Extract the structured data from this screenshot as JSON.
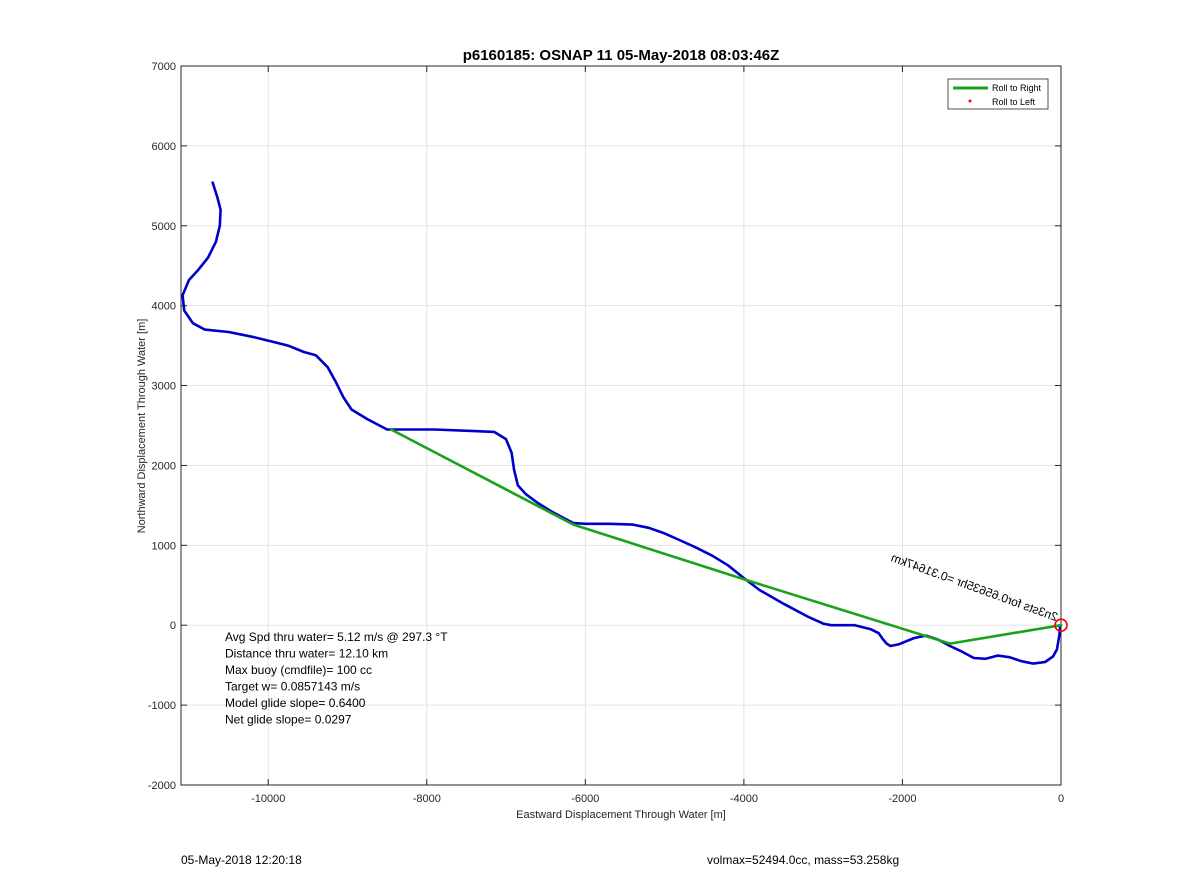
{
  "chart_data": {
    "type": "line",
    "title": "p6160185: OSNAP 11 05-May-2018 08:03:46Z",
    "xlabel": "Eastward Displacement Through Water [m]",
    "ylabel": "Northward Displacement Through Water [m]",
    "xlim": [
      -11100,
      0
    ],
    "ylim": [
      -2000,
      7000
    ],
    "xticks": [
      -10000,
      -8000,
      -6000,
      -4000,
      -2000,
      0
    ],
    "yticks": [
      -2000,
      -1000,
      0,
      1000,
      2000,
      3000,
      4000,
      5000,
      6000,
      7000
    ],
    "grid": true,
    "legend_position": "top-right",
    "legend": [
      {
        "label": "Roll to Right",
        "color": "#1aa31a",
        "marker": "line"
      },
      {
        "label": "Roll to Left",
        "color": "#ff0000",
        "marker": "dot"
      }
    ],
    "series": [
      {
        "color": "#0000cc",
        "x": [
          -10700,
          -10640,
          -10600,
          -10610,
          -10660,
          -10760,
          -10880,
          -11000,
          -11080,
          -11060,
          -10950,
          -10800,
          -10500,
          -10200,
          -9950,
          -9750,
          -9550,
          -9400,
          -9250,
          -9150,
          -9050,
          -8950,
          -8750,
          -8500,
          -8200,
          -7900,
          -7400,
          -7150,
          -7000,
          -6930,
          -6900,
          -6850,
          -6750,
          -6600,
          -6420,
          -6250,
          -6150,
          -6000,
          -5700,
          -5400,
          -5200,
          -5000,
          -4800,
          -4600,
          -4400,
          -4200,
          -4000,
          -3800,
          -3500,
          -3200,
          -3000,
          -2900,
          -2800,
          -2600,
          -2400,
          -2300,
          -2250,
          -2200,
          -2150,
          -2050,
          -1950,
          -1850,
          -1700,
          -1550,
          -1400,
          -1250,
          -1100,
          -950,
          -800,
          -650,
          -500,
          -350,
          -200,
          -100,
          -50,
          -20,
          -10,
          0
        ],
        "y": [
          5540,
          5350,
          5200,
          5000,
          4800,
          4600,
          4450,
          4320,
          4130,
          3940,
          3780,
          3700,
          3670,
          3610,
          3550,
          3500,
          3420,
          3380,
          3230,
          3050,
          2850,
          2700,
          2580,
          2450,
          2450,
          2450,
          2430,
          2420,
          2330,
          2160,
          1950,
          1750,
          1640,
          1530,
          1420,
          1330,
          1280,
          1270,
          1270,
          1260,
          1220,
          1150,
          1060,
          970,
          870,
          750,
          590,
          440,
          270,
          110,
          20,
          0,
          0,
          0,
          -50,
          -100,
          -170,
          -230,
          -260,
          -240,
          -200,
          -160,
          -130,
          -180,
          -260,
          -330,
          -410,
          -420,
          -380,
          -400,
          -450,
          -480,
          -460,
          -390,
          -300,
          -120,
          0,
          0
        ]
      },
      {
        "color": "#1aa31a",
        "x": [
          -8450,
          -6150,
          -3950,
          -1400,
          0
        ],
        "y": [
          2450,
          1260,
          560,
          -230,
          0
        ]
      }
    ],
    "annotations": [
      "Avg Spd thru water=  5.12 m/s @ 297.3 °T",
      "Distance thru water= 12.10 km",
      "Max buoy (cmdfile)= 100 cc",
      "Target w= 0.0857143 m/s",
      "Model glide slope= 0.6400",
      "Net glide slope= 0.0297"
    ],
    "rotated_label": "2n3sts for0.65635hr =0.31647km",
    "marker_circle": {
      "x": 0,
      "y": 0,
      "color": "#ff0000"
    }
  },
  "footer": {
    "timestamp": "05-May-2018 12:20:18",
    "summary": "volmax=52494.0cc, mass=53.258kg"
  }
}
